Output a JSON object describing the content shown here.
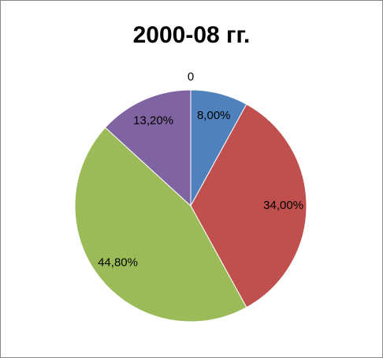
{
  "chart_data": {
    "type": "pie",
    "title": "2000-08 гг.",
    "values": [
      8,
      34,
      44.8,
      13.2,
      0
    ],
    "value_labels": [
      "8,00%",
      "34,00%",
      "44,80%",
      "13,20%",
      "0"
    ],
    "colors": [
      "#4f81bd",
      "#c0504d",
      "#9bbb59",
      "#8064a2",
      "#4bacc6"
    ]
  }
}
